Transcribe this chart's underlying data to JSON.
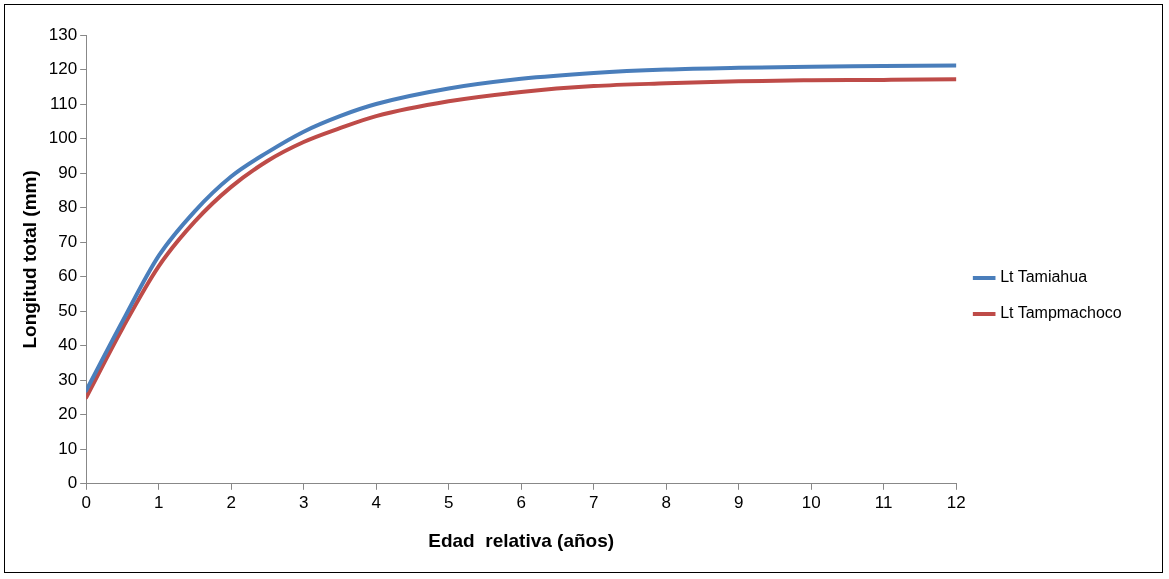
{
  "chart_data": {
    "type": "line",
    "xlabel": "Edad  relativa (años)",
    "ylabel": "Longitud total (mm)",
    "x": [
      0,
      0.5,
      1,
      1.5,
      2,
      2.5,
      3,
      3.5,
      4,
      5,
      6,
      7,
      8,
      9,
      10,
      11,
      12
    ],
    "series": [
      {
        "name": "Lt Tamiahua",
        "color": "#4a7ebb",
        "values": [
          27,
          47,
          66,
          79,
          89,
          96,
          102,
          106.5,
          110,
          114.5,
          117.3,
          119,
          120,
          120.5,
          120.8,
          121,
          121.2
        ]
      },
      {
        "name": "Lt Tampmachoco",
        "color": "#be4b48",
        "values": [
          25,
          45,
          63,
          76,
          86,
          93.5,
          99,
          103,
          106.5,
          110.8,
          113.5,
          115.2,
          116,
          116.6,
          116.9,
          117,
          117.2
        ]
      }
    ],
    "xlim": [
      0,
      12
    ],
    "xticks": [
      0,
      1,
      2,
      3,
      4,
      5,
      6,
      7,
      8,
      9,
      10,
      11,
      12
    ],
    "ylim": [
      0,
      130
    ],
    "yticks": [
      0,
      10,
      20,
      30,
      40,
      50,
      60,
      70,
      80,
      90,
      100,
      110,
      120,
      130
    ],
    "grid": false,
    "legend": "right",
    "marker": "none",
    "line_style": "solid"
  }
}
